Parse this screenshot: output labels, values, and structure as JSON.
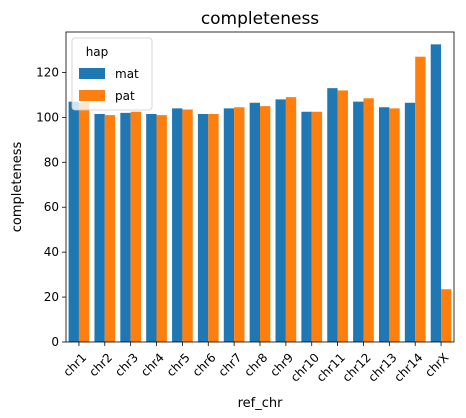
{
  "chart_data": {
    "type": "bar",
    "title": "completeness",
    "xlabel": "ref_chr",
    "ylabel": "completeness",
    "categories": [
      "chr1",
      "chr2",
      "chr3",
      "chr4",
      "chr5",
      "chr6",
      "chr7",
      "chr8",
      "chr9",
      "chr10",
      "chr11",
      "chr12",
      "chr13",
      "chr14",
      "chrX"
    ],
    "series": [
      {
        "name": "mat",
        "color": "#1f77b4",
        "values": [
          107,
          101.5,
          102,
          101.5,
          104,
          101.5,
          104,
          106.5,
          108,
          102.5,
          113,
          107,
          104.5,
          106.5,
          132.5
        ]
      },
      {
        "name": "pat",
        "color": "#ff7f0e",
        "values": [
          106.5,
          101,
          102.5,
          101,
          103.5,
          101.5,
          104.5,
          105,
          109,
          102.5,
          112,
          108.5,
          104,
          127,
          23.5
        ]
      }
    ],
    "ylim": [
      0,
      138
    ],
    "yticks": [
      0,
      20,
      40,
      60,
      80,
      100,
      120
    ],
    "legend": {
      "title": "hap",
      "placement": "top-left"
    },
    "grid": false
  }
}
